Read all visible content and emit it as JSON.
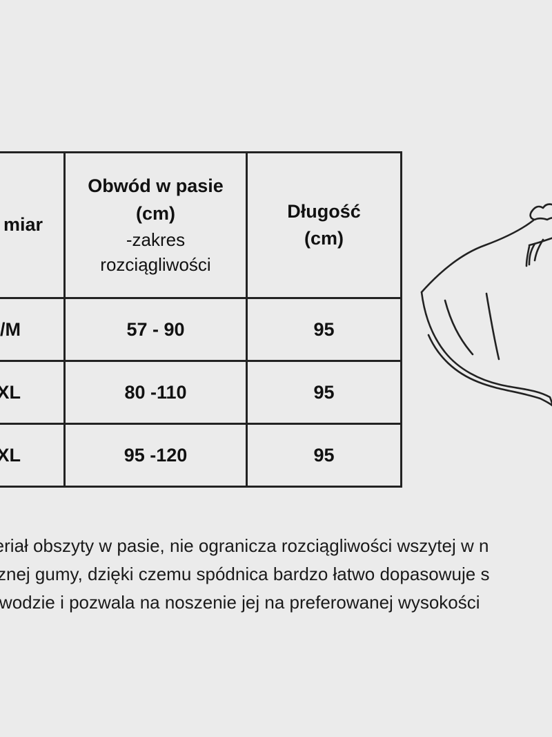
{
  "table": {
    "headers": {
      "size": "miar",
      "waist_line1": "Obwód w pasie",
      "waist_line2": "(cm)",
      "waist_sub1": "-zakres",
      "waist_sub2": "rozciągliwości",
      "length_line1": "Długość",
      "length_line2": "(cm)"
    },
    "rows": [
      {
        "size": "/M",
        "waist": "57 - 90",
        "length": "95"
      },
      {
        "size": "XL",
        "waist": "80 -110",
        "length": "95"
      },
      {
        "size": "XL",
        "waist": "95 -120",
        "length": "95"
      }
    ]
  },
  "description": {
    "line1": "ateriał  obszyty w pasie, nie ogranicza rozciągliwości wszytej w n",
    "line2": "ycznej gumy, dzięki czemu spódnica bardzo łatwo dopasowuje s",
    "line3": "obwodzie i pozwala na noszenie jej na preferowanej wysokości"
  },
  "illustration": {
    "icon": "skirt-illustration-icon",
    "stroke_color": "#222222"
  }
}
